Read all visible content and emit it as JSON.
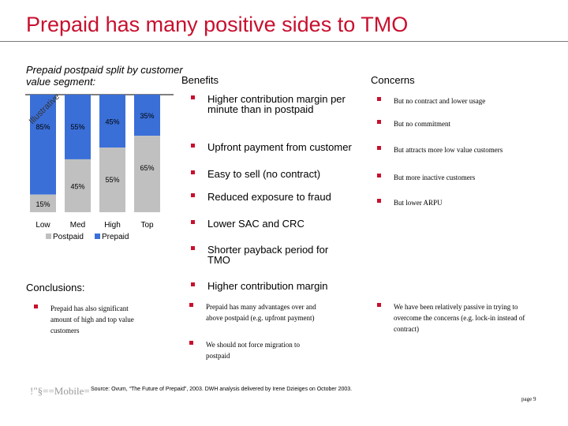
{
  "title": "Prepaid has many positive sides to TMO",
  "chart_data": {
    "type": "bar",
    "title": "Prepaid postpaid split by customer value segment:",
    "stacked": true,
    "categories": [
      "Low",
      "Med",
      "High",
      "Top"
    ],
    "series": [
      {
        "name": "Postpaid",
        "color": "#c0c0c0",
        "values": [
          15,
          45,
          55,
          65
        ]
      },
      {
        "name": "Prepaid",
        "color": "#3a6fd8",
        "values": [
          85,
          55,
          45,
          35
        ]
      }
    ],
    "ylim": [
      0,
      100
    ],
    "legend": "bottom",
    "watermark": "Illustrative"
  },
  "benefits": {
    "heading": "Benefits",
    "items": [
      "Higher contribution margin per minute than in postpaid",
      "Upfront payment from customer",
      "Easy to sell (no contract)",
      "Reduced exposure to fraud",
      "Lower SAC and CRC",
      "Shorter payback period for TMO",
      "Higher contribution margin"
    ]
  },
  "concerns": {
    "heading": "Concerns",
    "items": [
      "But no contract and lower usage",
      "But no commitment",
      "But attracts more low value customers",
      "But more inactive customers",
      "But lower ARPU"
    ]
  },
  "conclusions": {
    "heading": "Conclusions:",
    "col1": [
      "Prepaid has also significant amount of high and top value customers"
    ],
    "col2": [
      "Prepaid has many advantages over and above postpaid (e.g. upfront payment)",
      "We should not force migration to postpaid"
    ],
    "col3": [
      "We have been relatively passive in trying to overcome the concerns (e.g. lock-in instead of contract)"
    ]
  },
  "footer": {
    "logo_text": "!\"§==Mobile=",
    "source": "Source: Ovum, “The Future of Prepaid”, 2003. DWH analysis delivered by Irene Dzieiges on October 2003.",
    "page": "page 9"
  },
  "colors": {
    "accent": "#c8102e",
    "prepaid": "#3a6fd8",
    "postpaid": "#c0c0c0"
  }
}
